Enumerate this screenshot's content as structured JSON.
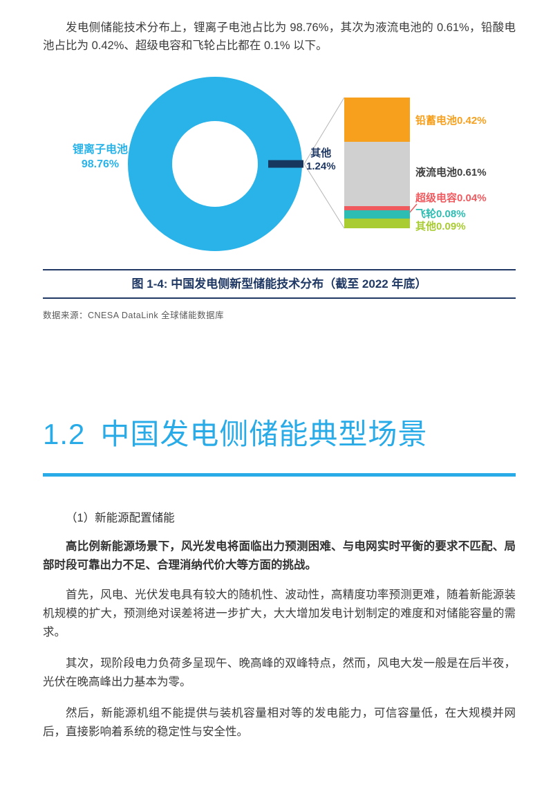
{
  "colors": {
    "cyan": "#29b3e8",
    "heading_cyan": "#29abe8",
    "navy": "#1f3864",
    "slice_navy": "#17375e",
    "connector_gray": "#b5b5b5",
    "body_text": "#3b3b3b",
    "source_text": "#595959"
  },
  "intro": {
    "text": "发电侧储能技术分布上，锂离子电池占比为 98.76%，其次为液流电池的 0.61%，铅酸电池占比为 0.42%、超级电容和飞轮占比都在 0.1% 以下。"
  },
  "chart_data": {
    "type": "pie",
    "title": "中国发电侧新型储能技术分布（截至 2022 年底）",
    "unit": "%",
    "legend_position": "none",
    "slices": [
      {
        "name": "锂离子电池",
        "value": 98.76,
        "color": "#29b3e8"
      },
      {
        "name": "其他",
        "value": 1.24,
        "color": "#17375e"
      }
    ],
    "donut_label": {
      "name": "锂离子电池",
      "value": "98.76%"
    },
    "other_label": {
      "name": "其他",
      "value": "1.24%"
    },
    "breakout": {
      "total_name": "其他",
      "total_value": 1.24,
      "items": [
        {
          "name": "铅蓄电池",
          "value": 0.42,
          "display": "铅蓄电池0.42%",
          "color": "#f6a01e",
          "label_color": "#f6a01e"
        },
        {
          "name": "液流电池",
          "value": 0.61,
          "display": "液流电池0.61%",
          "color": "#d0d0d0",
          "label_color": "#404040"
        },
        {
          "name": "超级电容",
          "value": 0.04,
          "display": "超级电容0.04%",
          "color": "#ef5a5f",
          "label_color": "#ef5a5f"
        },
        {
          "name": "飞轮",
          "value": 0.08,
          "display": "飞轮0.08%",
          "color": "#2ebdb2",
          "label_color": "#2ebdb2"
        },
        {
          "name": "其他",
          "value": 0.09,
          "display": "其他0.09%",
          "color": "#a9cc33",
          "label_color": "#a9cc33"
        }
      ]
    }
  },
  "caption": {
    "text": "图 1-4: 中国发电侧新型储能技术分布（截至 2022 年底）"
  },
  "source": {
    "text": "数据来源：CNESA DataLink 全球储能数据库"
  },
  "section": {
    "number": "1.2",
    "title": "中国发电侧储能典型场景"
  },
  "subsection": {
    "title": "（1）新能源配置储能"
  },
  "paragraphs": {
    "p_bold": "高比例新能源场景下，风光发电将面临出力预测困难、与电网实时平衡的要求不匹配、局部时段可靠出力不足、合理消纳代价大等方面的挑战。",
    "p1": "首先，风电、光伏发电具有较大的随机性、波动性，高精度功率预测更难，随着新能源装机规模的扩大，预测绝对误差将进一步扩大，大大增加发电计划制定的难度和对储能容量的需求。",
    "p2": "其次，现阶段电力负荷多呈现午、晚高峰的双峰特点，然而，风电大发一般是在后半夜，光伏在晚高峰出力基本为零。",
    "p3": "然后，新能源机组不能提供与装机容量相对等的发电能力，可信容量低，在大规模并网后，直接影响着系统的稳定性与安全性。"
  }
}
